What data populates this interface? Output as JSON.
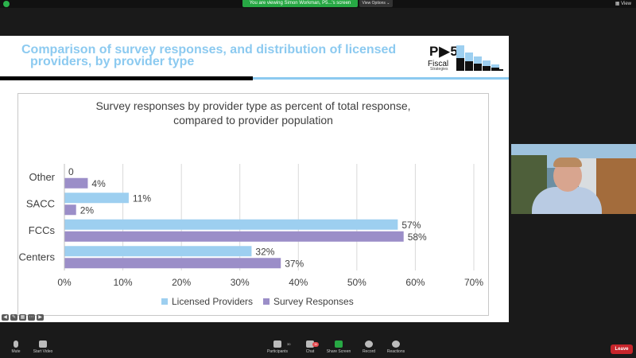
{
  "zoom": {
    "banner": "You are viewing Simon Workman, P5...'s screen",
    "view_options": "View Options ⌄",
    "view_label": "View"
  },
  "slide": {
    "title_line1": "Comparison of survey responses, and distribution of licensed",
    "title_line2": "providers, by provider type",
    "logo": {
      "main": "P▶5",
      "fiscal": "Fiscal",
      "strategies": "Strategies"
    },
    "colors": {
      "title": "#8ccaf0",
      "licensed": "#9dcff0",
      "survey": "#9b8ec8"
    }
  },
  "chart_data": {
    "type": "bar",
    "orientation": "horizontal",
    "title": "Survey responses by provider type as percent of total response, compared to provider population",
    "title_line1": "Survey responses by provider type as percent of total response,",
    "title_line2": "compared to provider population",
    "categories": [
      "Other",
      "SACC",
      "FCCs",
      "Centers"
    ],
    "series": [
      {
        "name": "Licensed Providers",
        "values": [
          0,
          11,
          57,
          32
        ],
        "labels": [
          "0",
          "11%",
          "57%",
          "32%"
        ],
        "color": "#9dcff0"
      },
      {
        "name": "Survey Responses",
        "values": [
          4,
          2,
          58,
          37
        ],
        "labels": [
          "4%",
          "2%",
          "58%",
          "37%"
        ],
        "color": "#9b8ec8"
      }
    ],
    "xlim": [
      0,
      70
    ],
    "xticks": [
      0,
      10,
      20,
      30,
      40,
      50,
      60,
      70
    ],
    "xtick_labels": [
      "0%",
      "10%",
      "20%",
      "30%",
      "40%",
      "50%",
      "60%",
      "70%"
    ],
    "grid": true,
    "legend_position": "bottom"
  },
  "toolbar": {
    "mute": "Mute",
    "start_video": "Start Video",
    "participants": "Participants",
    "participants_count": "30",
    "chat": "Chat",
    "chat_badge": "11",
    "share": "Share Screen",
    "record": "Record",
    "reactions": "Reactions",
    "leave": "Leave"
  }
}
